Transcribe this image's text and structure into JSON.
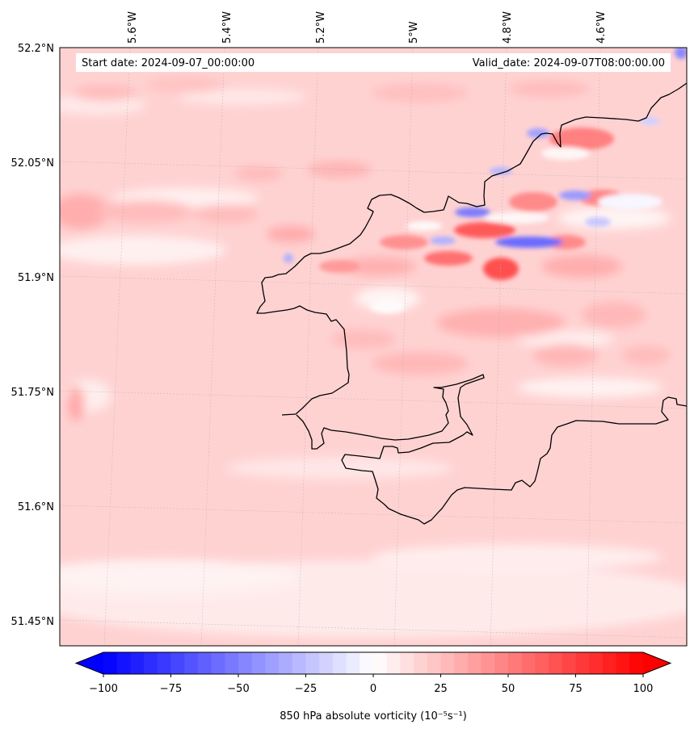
{
  "map": {
    "start_label": "Start date: 2024-09-07_00:00:00",
    "valid_label": "Valid_date: 2024-09-07T08:00:00.00",
    "lon_ticks": [
      "5.6°W",
      "5.4°W",
      "5.2°W",
      "5°W",
      "4.8°W",
      "4.6°W"
    ],
    "lat_ticks": [
      "52.2°N",
      "52.05°N",
      "51.9°N",
      "51.75°N",
      "51.6°N",
      "51.45°N"
    ],
    "field_colors": {
      "background": "#ffd2d2",
      "light": "#ffeded",
      "white": "#fbfbff",
      "medium": "#ffb5b5",
      "strong": "#ff6f6f",
      "negative": "#6a6aff",
      "negative_light": "#c4c4ff"
    },
    "coast_color": "#000000"
  },
  "colorbar": {
    "label": "850 hPa absolute vorticity (10⁻⁵s⁻¹)",
    "ticks": [
      "−100",
      "−75",
      "−50",
      "−25",
      "0",
      "25",
      "50",
      "75",
      "100"
    ],
    "min": -100,
    "max": 100,
    "step": 5,
    "low_color": "#0000ff",
    "mid_color": "#ffffff",
    "high_color": "#ff0000"
  }
}
